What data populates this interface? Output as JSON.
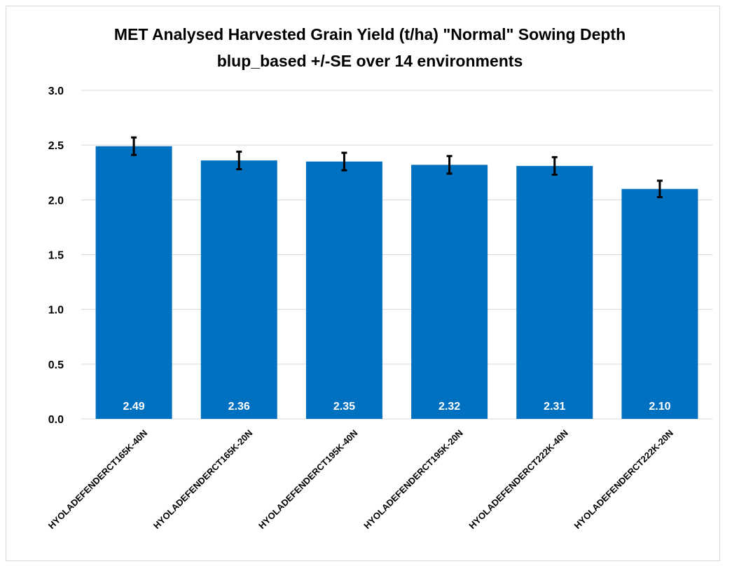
{
  "chart_data": {
    "type": "bar",
    "title": "MET Analysed Harvested Grain Yield (t/ha) \"Normal\" Sowing Depth",
    "subtitle": "blup_based +/-SE over 14 environments",
    "xlabel": "",
    "ylabel": "",
    "categories": [
      "HYOLADEFENDERCT165K-40N",
      "HYOLADEFENDERCT165K-20N",
      "HYOLADEFENDERCT195K-40N",
      "HYOLADEFENDERCT195K-20N",
      "HYOLADEFENDERCT222K-40N",
      "HYOLADEFENDERCT222K-20N"
    ],
    "values": [
      2.49,
      2.36,
      2.35,
      2.32,
      2.31,
      2.1
    ],
    "data_labels": [
      "2.49",
      "2.36",
      "2.35",
      "2.32",
      "2.31",
      "2.10"
    ],
    "error_bars": [
      0.08,
      0.08,
      0.08,
      0.08,
      0.08,
      0.075
    ],
    "ylim": [
      0,
      3.0
    ],
    "yticks": [
      "0.0",
      "0.5",
      "1.0",
      "1.5",
      "2.0",
      "2.5",
      "3.0"
    ],
    "grid": true,
    "legend": "none",
    "colors": {
      "bar": "#0070C0",
      "gridline": "#d9d9d9",
      "error_bar": "#000000",
      "data_label": "#ffffff"
    }
  }
}
